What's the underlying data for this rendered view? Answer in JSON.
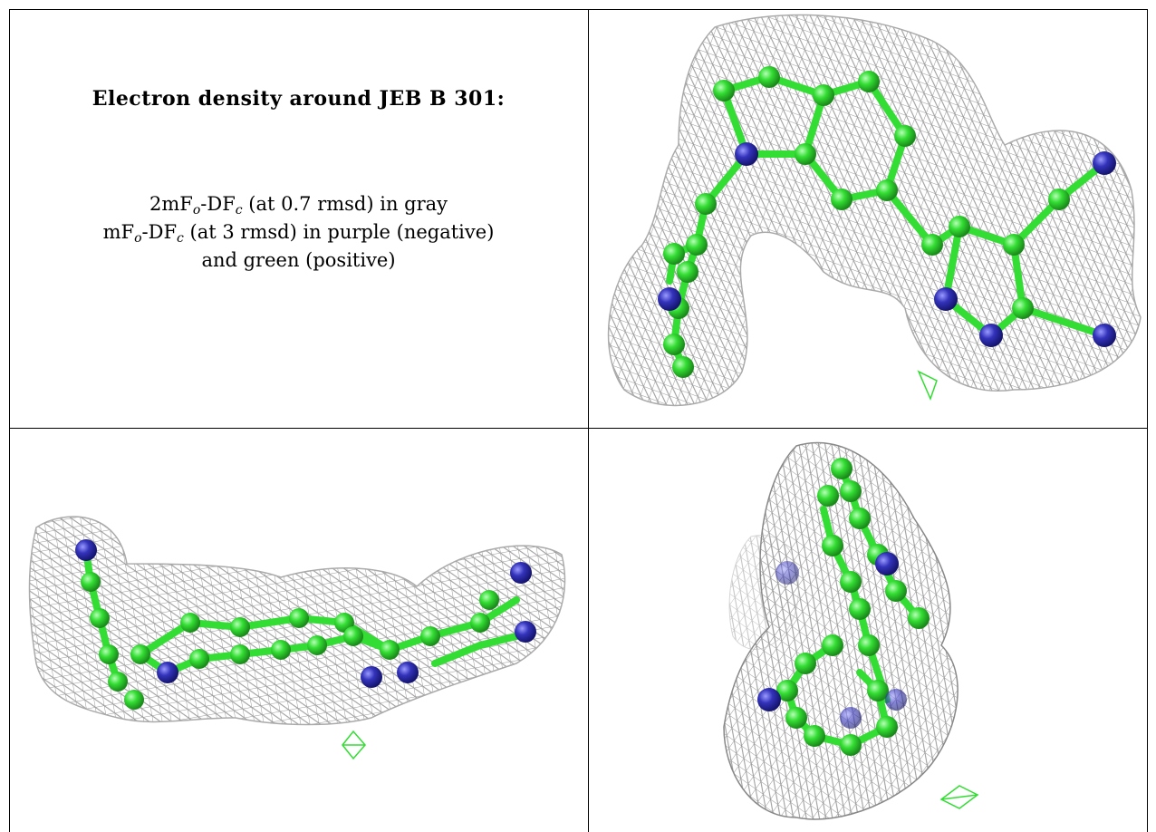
{
  "caption": {
    "title": "Electron density around JEB B 301:",
    "line1": {
      "prefix": "2mF",
      "sub1": "o",
      "mid": "-DF",
      "sub2": "c",
      "suffix": " (at 0.7 rmsd) in gray"
    },
    "line2": {
      "prefix": "mF",
      "sub1": "o",
      "mid": "-DF",
      "sub2": "c",
      "suffix": " (at 3 rmsd) in purple (negative)"
    },
    "line3": "and green (positive)"
  },
  "colors": {
    "density_mesh": "#9a9a9a",
    "carbon_atom": "#33dd33",
    "nitrogen_atom": "#3333bb",
    "positive_density": "#33dd33",
    "negative_density": "#8844aa",
    "border": "#000000"
  },
  "panels": [
    {
      "view": "top-right",
      "content": "density-map-view-1"
    },
    {
      "view": "bottom-left",
      "content": "density-map-view-2"
    },
    {
      "view": "bottom-right",
      "content": "density-map-view-3"
    }
  ]
}
